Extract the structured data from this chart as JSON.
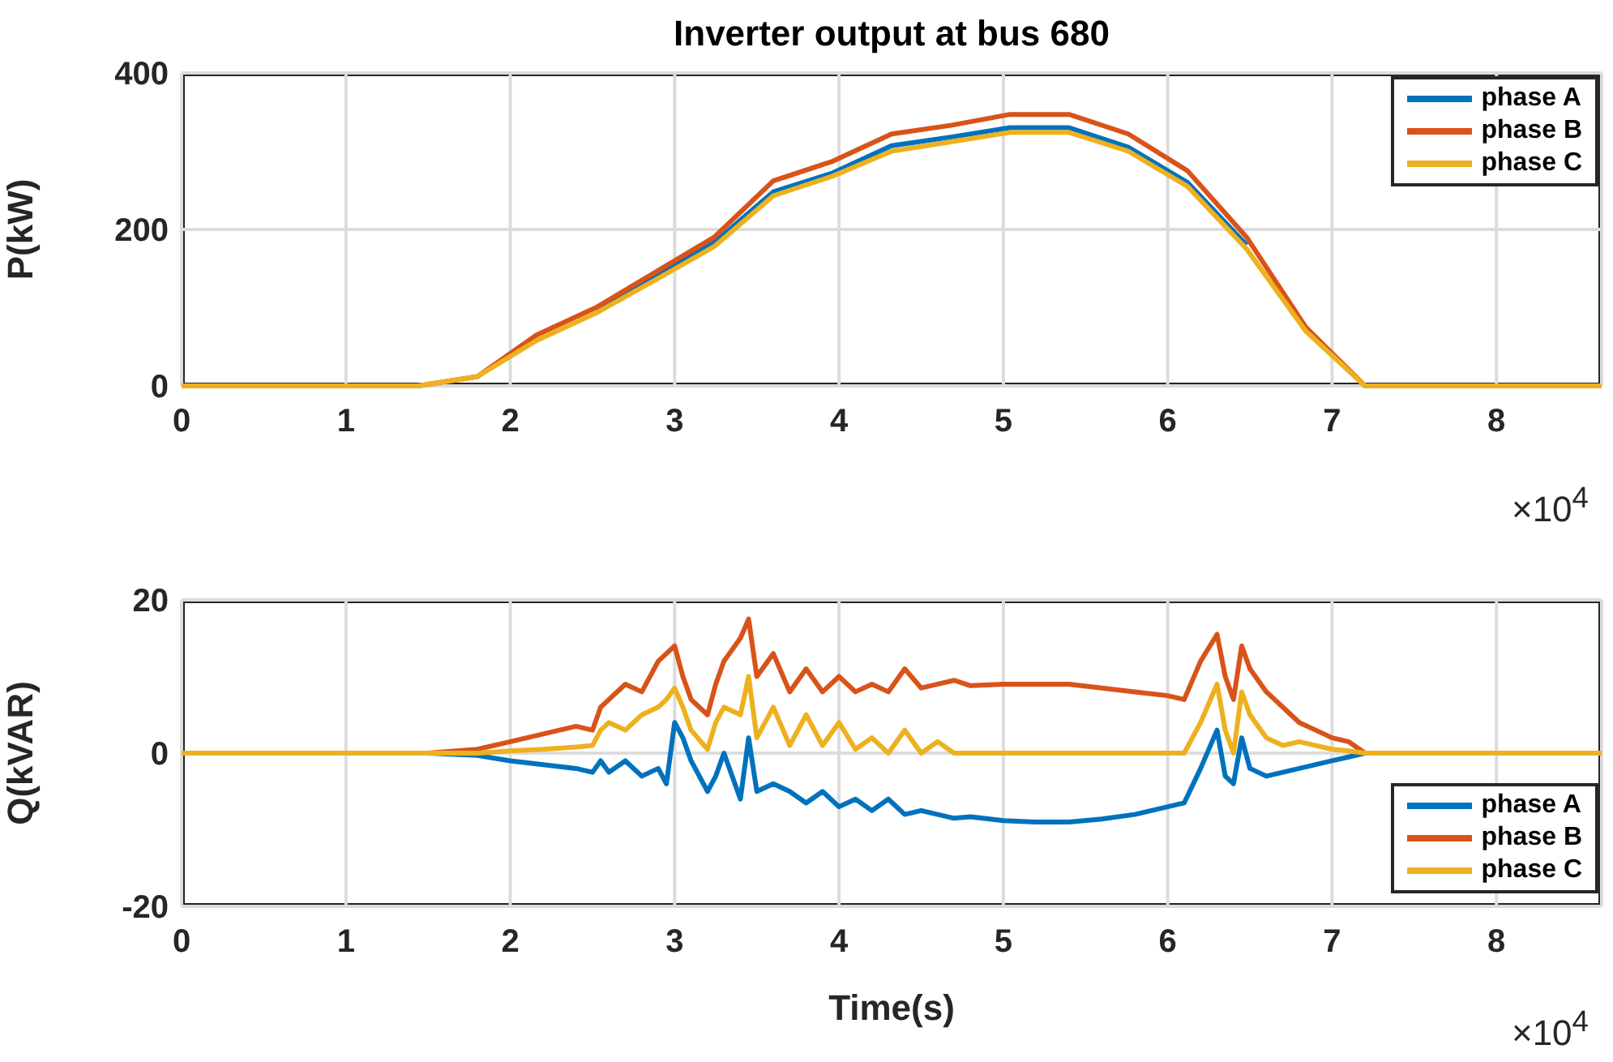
{
  "chart_data": [
    {
      "type": "line",
      "title": "Inverter output at bus 680",
      "ylabel": "P(kW)",
      "annotations": [
        "×10$^{4}$"
      ],
      "x": [
        0,
        0.36,
        0.72,
        1.08,
        1.44,
        1.8,
        2.16,
        2.52,
        2.88,
        3.24,
        3.6,
        3.96,
        4.32,
        4.68,
        5.04,
        5.4,
        5.76,
        6.12,
        6.48,
        6.84,
        7.2,
        7.56,
        7.92,
        8.28,
        8.64
      ],
      "series": [
        {
          "name": "phase A",
          "color": "#0072bd",
          "values": [
            null,
            null,
            null,
            null,
            null,
            null,
            null,
            97,
            140,
            183,
            248,
            272,
            307,
            318,
            330,
            330,
            305,
            260,
            180,
            null,
            null,
            null,
            null,
            null,
            null
          ]
        },
        {
          "name": "phase B",
          "color": "#d95319",
          "values": [
            null,
            null,
            null,
            0,
            0,
            12,
            65,
            100,
            145,
            190,
            262,
            287,
            322,
            333,
            347,
            347,
            322,
            275,
            190,
            75,
            0,
            0,
            null,
            null,
            null
          ]
        },
        {
          "name": "phase C",
          "color": "#edb120",
          "values": [
            0,
            0,
            0,
            0,
            0,
            12,
            58,
            93,
            135,
            178,
            243,
            268,
            300,
            312,
            324,
            324,
            300,
            255,
            175,
            70,
            0,
            0,
            0,
            0,
            0
          ]
        }
      ],
      "xlim": [
        0,
        8.64
      ],
      "xticks": [
        0,
        1,
        2,
        3,
        4,
        5,
        6,
        7,
        8
      ],
      "ylim": [
        0,
        400
      ],
      "yticks": [
        0,
        200,
        400
      ],
      "grid": true,
      "legend": "top right",
      "line_style": "solid",
      "marker": "none"
    },
    {
      "type": "line",
      "xlabel": "Time(s)",
      "ylabel": "Q(kVAR)",
      "annotations": [
        "×10$^{4}$"
      ],
      "x": [
        0,
        1,
        1.5,
        1.8,
        2,
        2.2,
        2.4,
        2.5,
        2.55,
        2.6,
        2.7,
        2.8,
        2.9,
        2.95,
        3,
        3.05,
        3.1,
        3.2,
        3.25,
        3.3,
        3.4,
        3.45,
        3.5,
        3.6,
        3.7,
        3.8,
        3.9,
        4,
        4.1,
        4.2,
        4.3,
        4.4,
        4.5,
        4.6,
        4.7,
        4.8,
        5,
        5.2,
        5.4,
        5.6,
        5.8,
        6,
        6.1,
        6.2,
        6.3,
        6.35,
        6.4,
        6.45,
        6.5,
        6.6,
        6.7,
        6.8,
        6.9,
        7,
        7.1,
        7.2,
        8,
        8.64
      ],
      "series": [
        {
          "name": "phase A",
          "color": "#0072bd",
          "values": [
            0,
            0,
            0,
            -0.3,
            -1,
            -1.5,
            -2,
            -2.5,
            -1,
            -2.5,
            -1,
            -3,
            -2,
            -4,
            4,
            2,
            -1,
            -5,
            -3,
            0,
            -6,
            2,
            -5,
            -4,
            -5,
            -6.5,
            -5,
            -7,
            -6,
            -7.5,
            -6,
            -8,
            -7.5,
            -8,
            -8.5,
            -8.3,
            -8.8,
            -9,
            -9,
            -8.6,
            -8,
            -7,
            -6.5,
            -2,
            3,
            -3,
            -4,
            2,
            -2,
            -3,
            -2.5,
            -2,
            -1.5,
            -1,
            -0.5,
            0,
            0,
            0
          ]
        },
        {
          "name": "phase B",
          "color": "#d95319",
          "values": [
            0,
            0,
            0,
            0.5,
            1.5,
            2.5,
            3.5,
            3,
            6,
            7,
            9,
            8,
            12,
            13,
            14,
            10,
            7,
            5,
            9,
            12,
            15,
            17.5,
            10,
            13,
            8,
            11,
            8,
            10,
            8,
            9,
            8,
            11,
            8.5,
            9,
            9.5,
            8.8,
            9,
            9,
            9,
            8.5,
            8,
            7.5,
            7,
            12,
            15.5,
            10,
            7,
            14,
            11,
            8,
            6,
            4,
            3,
            2,
            1.5,
            0,
            0,
            0
          ]
        },
        {
          "name": "phase C",
          "color": "#edb120",
          "values": [
            0,
            0,
            0,
            0,
            0.3,
            0.5,
            0.8,
            1,
            3,
            4,
            3,
            5,
            6,
            7,
            8.5,
            6,
            3,
            0.5,
            4,
            6,
            5,
            10,
            2,
            6,
            1,
            5,
            1,
            4,
            0.5,
            2,
            0,
            3,
            0,
            1.5,
            0,
            0,
            0,
            0,
            0,
            0,
            0,
            0,
            0,
            4,
            9,
            3,
            0,
            8,
            5,
            2,
            1,
            1.5,
            1,
            0.5,
            0.3,
            0,
            0,
            0
          ]
        }
      ],
      "xlim": [
        0,
        8.64
      ],
      "xticks": [
        0,
        1,
        2,
        3,
        4,
        5,
        6,
        7,
        8
      ],
      "ylim": [
        -20,
        20
      ],
      "yticks": [
        -20,
        0,
        20
      ],
      "grid": true,
      "legend": "bottom right",
      "line_style": "solid",
      "marker": "none"
    }
  ]
}
